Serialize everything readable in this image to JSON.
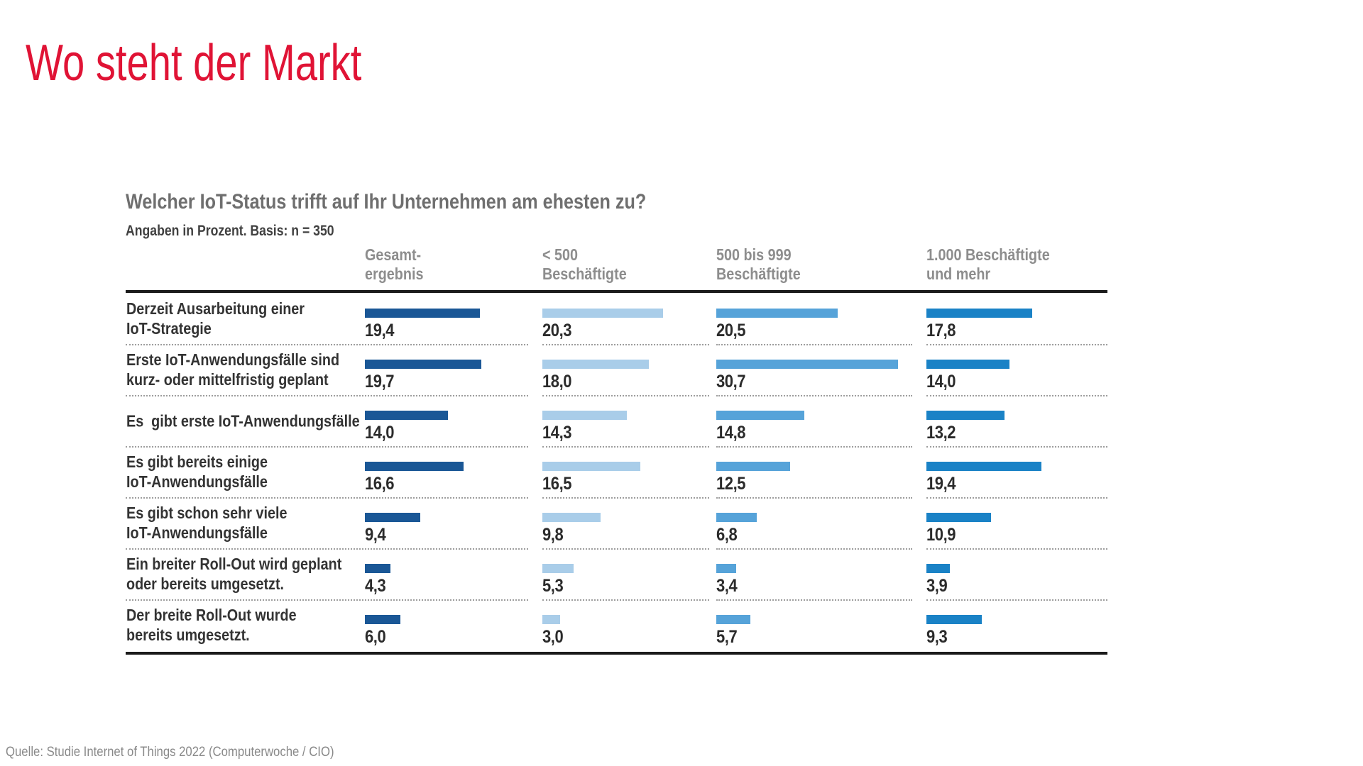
{
  "page": {
    "title": "Wo steht der Markt",
    "source": "Quelle: Studie Internet of Things 2022 (Computerwoche / CIO)"
  },
  "colors": {
    "title_red": "#E01335",
    "rule_black": "#1B1B1B",
    "label_gray": "#8D8D8D"
  },
  "chart_data": {
    "type": "bar",
    "orientation": "horizontal",
    "title": "Welcher IoT-Status trifft auf Ihr Unternehmen am ehesten zu?",
    "subtitle": "Angaben in Prozent. Basis: n = 350",
    "unit": "percent",
    "value_format": "german-comma-1dp",
    "xlim": [
      0,
      35
    ],
    "grid": false,
    "legend_position": "column-headers-top",
    "categories": [
      "Derzeit Ausarbeitung einer\nIoT-Strategie",
      "Erste IoT-Anwendungsfälle sind\nkurz- oder mittelfristig geplant",
      "Es  gibt erste IoT-Anwendungsfälle",
      "Es gibt bereits einige\nIoT-Anwendungsfälle",
      "Es gibt schon sehr viele\nIoT-Anwendungsfälle",
      "Ein breiter Roll-Out wird geplant\noder bereits umgesetzt.",
      "Der breite Roll-Out wurde\nbereits umgesetzt."
    ],
    "series": [
      {
        "name": "Gesamt-\nergebnis",
        "color": "#1A5796",
        "values": [
          19.4,
          19.7,
          14.0,
          16.6,
          9.4,
          4.3,
          6.0
        ]
      },
      {
        "name": "< 500\nBeschäftigte",
        "color": "#A9CDE9",
        "values": [
          20.3,
          18.0,
          14.3,
          16.5,
          9.8,
          5.3,
          3.0
        ]
      },
      {
        "name": "500 bis 999\nBeschäftigte",
        "color": "#56A3D9",
        "values": [
          20.5,
          30.7,
          14.8,
          12.5,
          6.8,
          3.4,
          5.7
        ]
      },
      {
        "name": "1.000 Beschäftigte\nund mehr",
        "color": "#1A82C6",
        "values": [
          17.8,
          14.0,
          13.2,
          19.4,
          10.9,
          3.9,
          9.3
        ]
      }
    ]
  }
}
